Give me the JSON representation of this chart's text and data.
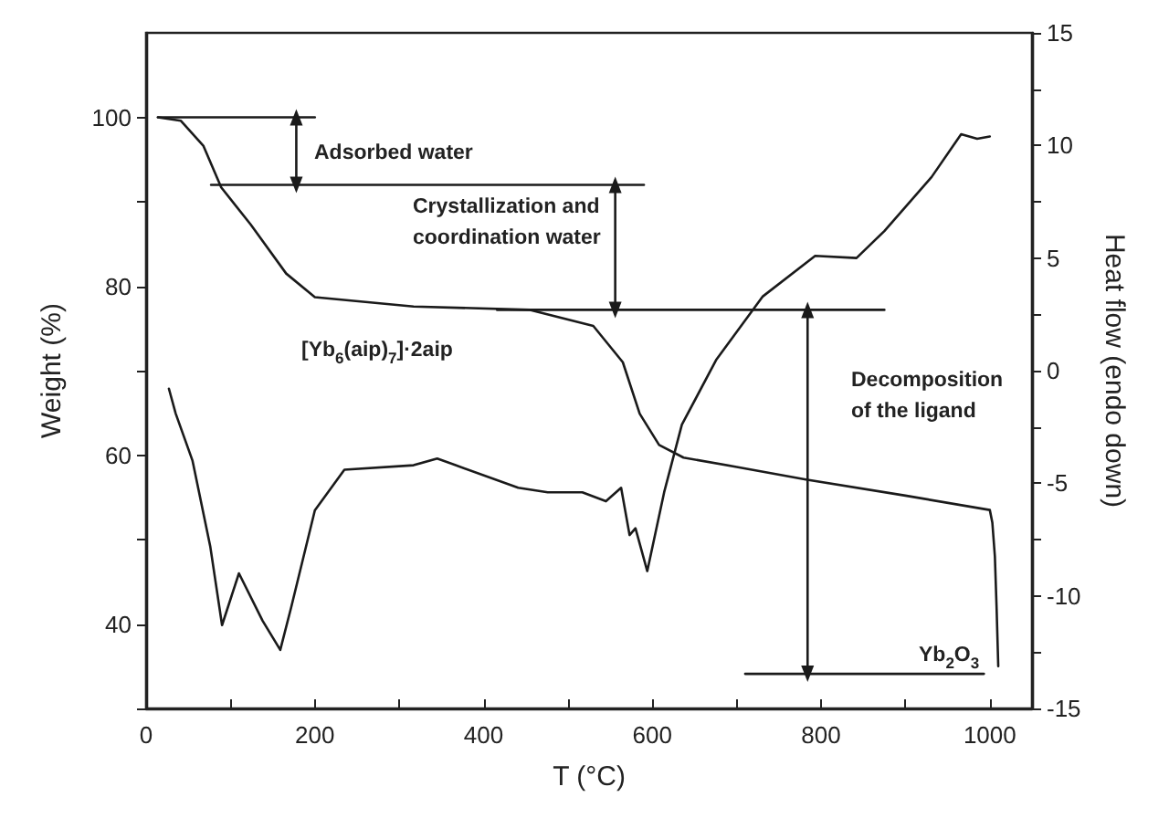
{
  "chart_data": {
    "type": "line",
    "xlabel": "T (°C)",
    "ylabel": "Weight (%)",
    "y2label": "Heat flow (endo down)",
    "xlim": [
      0,
      1050
    ],
    "xticks": [
      0,
      {
        "value": 100,
        "label": null
      },
      200,
      {
        "value": 300,
        "label": null
      },
      400,
      {
        "value": 500,
        "label": null
      },
      600,
      {
        "value": 700,
        "label": null
      },
      800,
      {
        "value": 900,
        "label": null
      },
      1000
    ],
    "ylim": [
      30,
      110
    ],
    "yticks": [
      {
        "value": 30,
        "label": null
      },
      40,
      {
        "value": 50,
        "label": null
      },
      60,
      {
        "value": 70,
        "label": null
      },
      80,
      {
        "value": 90,
        "label": null
      },
      100
    ],
    "y2lim": [
      -15,
      15
    ],
    "y2ticks": [
      -15,
      {
        "value": -12.5,
        "label": null
      },
      -10,
      {
        "value": -7.5,
        "label": null
      },
      -5,
      {
        "value": -2.5,
        "label": null
      },
      0,
      {
        "value": 2.5,
        "label": null
      },
      5,
      {
        "value": 7.5,
        "label": null
      },
      10,
      {
        "value": 12.5,
        "label": null
      },
      15
    ],
    "grid": false,
    "marker": "none",
    "line_style": "solid",
    "series": [
      {
        "color": "#1a1a1a",
        "axis": "y",
        "x": [
          14,
          41,
          68,
          89,
          124,
          166,
          200,
          317,
          455,
          530,
          565,
          585,
          608,
          637,
          700,
          782,
          900,
          1000,
          1003,
          1006,
          1008,
          1010
        ],
        "values": [
          100,
          99.6,
          96.6,
          91.7,
          87.3,
          81.5,
          78.7,
          77.6,
          77.2,
          75.3,
          71,
          64.9,
          61.2,
          59.7,
          58.6,
          57.1,
          55.2,
          53.5,
          52,
          48,
          42,
          35
        ]
      },
      {
        "color": "#1a1a1a",
        "axis": "y2",
        "x": [
          27,
          35,
          55,
          76,
          90,
          110,
          138,
          159,
          172,
          200,
          235,
          317,
          345,
          441,
          476,
          517,
          545,
          563,
          573,
          580,
          594,
          614,
          635,
          676,
          731,
          793,
          842,
          875,
          931,
          966,
          985,
          1000
        ],
        "values": [
          -0.8,
          -1.9,
          -4.0,
          -7.8,
          -11.3,
          -9.0,
          -11.1,
          -12.4,
          -10.5,
          -6.2,
          -4.4,
          -4.2,
          -3.9,
          -5.2,
          -5.4,
          -5.4,
          -5.8,
          -5.2,
          -7.3,
          -7.0,
          -8.9,
          -5.4,
          -2.4,
          0.5,
          3.3,
          5.1,
          5.0,
          6.2,
          8.6,
          10.5,
          10.3,
          10.4
        ]
      },
      {
        "color": "#1a1a1a",
        "axis": "y",
        "x": [
          14,
          200
        ],
        "values": [
          100,
          100
        ]
      },
      {
        "color": "#1a1a1a",
        "axis": "y",
        "x": [
          77,
          590
        ],
        "values": [
          92,
          92
        ]
      },
      {
        "color": "#1a1a1a",
        "axis": "y",
        "x": [
          416,
          875
        ],
        "values": [
          77.2,
          77.2
        ]
      },
      {
        "color": "#1a1a1a",
        "axis": "y",
        "x": [
          710,
          993
        ],
        "values": [
          34.1,
          34.1
        ]
      },
      {
        "color": "#1a1a1a",
        "axis": "y",
        "marker": "triangle",
        "x": [
          178,
          178
        ],
        "values": [
          100,
          92
        ]
      },
      {
        "color": "#1a1a1a",
        "axis": "y",
        "marker": "triangle",
        "x": [
          556,
          556
        ],
        "values": [
          92,
          77.2
        ]
      },
      {
        "color": "#1a1a1a",
        "axis": "y",
        "marker": "triangle",
        "x": [
          784,
          784
        ],
        "values": [
          77.2,
          34.1
        ]
      }
    ],
    "annotations": [
      "Adsorbed water",
      "Crystallization and\ncoordination water",
      "[Yb$_{6}$(aip)$_{7}$]·2aip",
      "Decomposition\nof the ligand",
      "Yb$_{2}$O$_{3}$"
    ]
  }
}
